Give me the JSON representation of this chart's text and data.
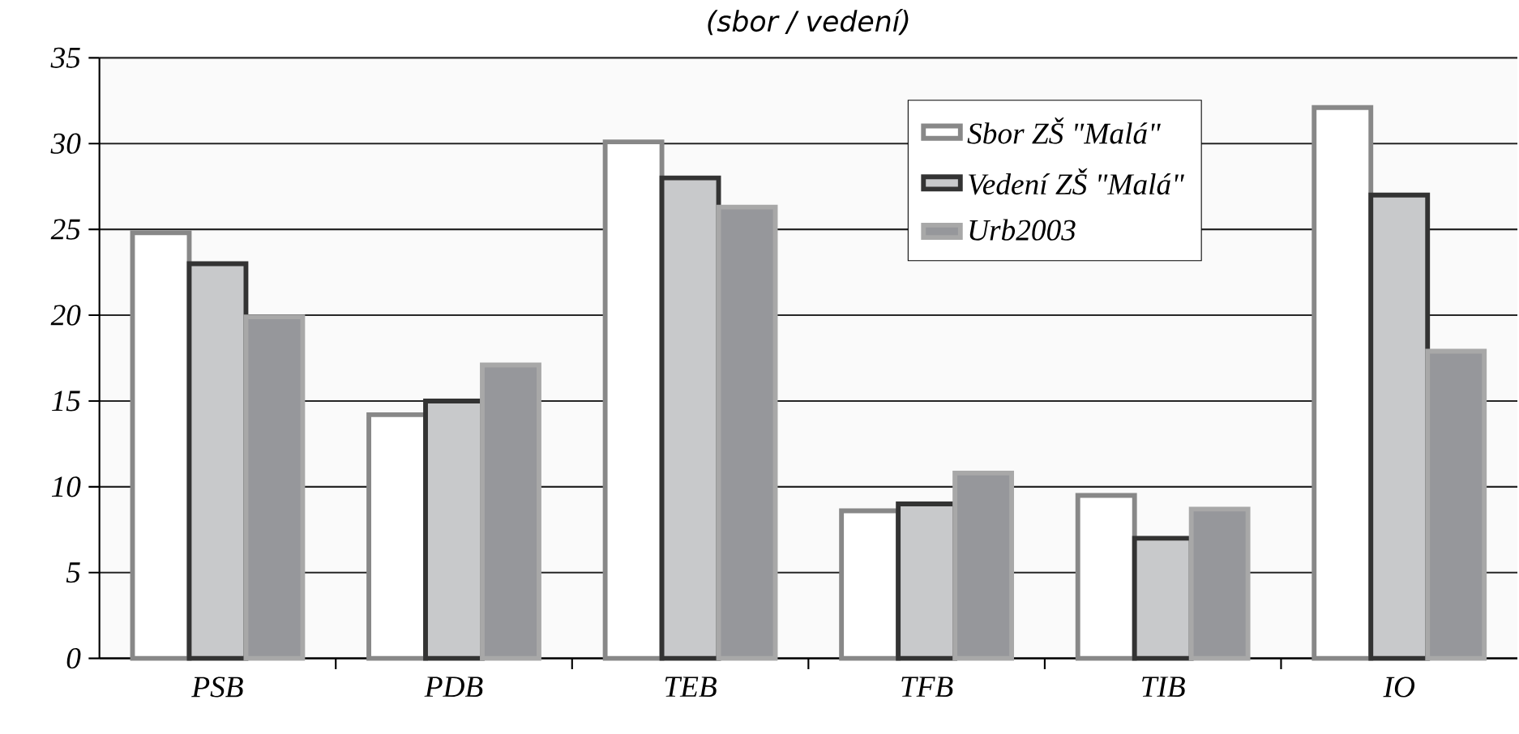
{
  "chart_data": {
    "type": "bar",
    "title": "(sbor / vedení)",
    "categories": [
      "PSB",
      "PDB",
      "TEB",
      "TFB",
      "TIB",
      "IO"
    ],
    "series": [
      {
        "name": "Sbor ZŠ \"Malá\"",
        "color": "#ffffff",
        "values": [
          24.8,
          14.2,
          30.1,
          8.6,
          9.5,
          32.1
        ]
      },
      {
        "name": "Vedení ZŠ \"Malá\"",
        "color": "#c8c9cb",
        "values": [
          23,
          15,
          28,
          9,
          7,
          27
        ]
      },
      {
        "name": "Urb2003",
        "color": "#96979b",
        "values": [
          19.9,
          17.1,
          26.3,
          10.8,
          8.7,
          17.9
        ]
      }
    ],
    "ylim": [
      0,
      35
    ],
    "yticks": [
      0,
      5,
      10,
      15,
      20,
      25,
      30,
      35
    ],
    "grid": "y",
    "legend": "top right"
  }
}
